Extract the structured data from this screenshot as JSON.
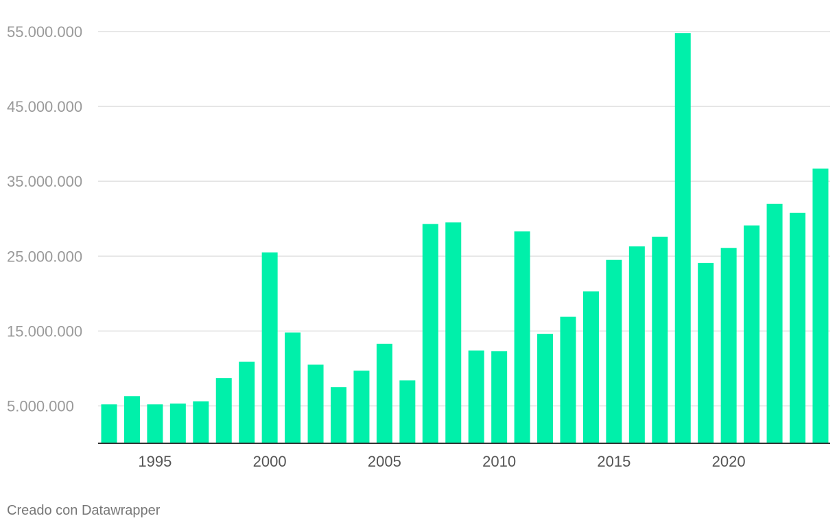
{
  "credit": "Creado con Datawrapper",
  "colors": {
    "bar": "#00f0aa",
    "grid": "#e0e0e0",
    "axis": "#333333"
  },
  "chart_data": {
    "type": "bar",
    "title": "",
    "xlabel": "",
    "ylabel": "",
    "categories": [
      1993,
      1994,
      1995,
      1996,
      1997,
      1998,
      1999,
      2000,
      2001,
      2002,
      2003,
      2004,
      2005,
      2006,
      2007,
      2008,
      2009,
      2010,
      2011,
      2012,
      2013,
      2014,
      2015,
      2016,
      2017,
      2018,
      2019,
      2020,
      2021,
      2022,
      2023,
      2024
    ],
    "values": [
      5200000,
      6300000,
      5200000,
      5300000,
      5600000,
      8700000,
      10900000,
      25500000,
      14800000,
      10500000,
      7500000,
      9700000,
      13300000,
      8400000,
      29300000,
      29500000,
      12400000,
      12300000,
      28300000,
      14600000,
      16900000,
      20300000,
      24500000,
      26300000,
      27600000,
      54800000,
      24100000,
      26100000,
      29100000,
      32000000,
      30800000,
      36700000
    ],
    "ylim": [
      0,
      55000000
    ],
    "yticks": [
      5000000,
      15000000,
      25000000,
      35000000,
      45000000,
      55000000
    ],
    "ytick_labels": [
      "5.000.000",
      "15.000.000",
      "25.000.000",
      "35.000.000",
      "45.000.000",
      "55.000.000"
    ],
    "xticks": [
      1995,
      2000,
      2005,
      2010,
      2015,
      2020
    ],
    "xtick_labels": [
      "1995",
      "2000",
      "2005",
      "2010",
      "2015",
      "2020"
    ],
    "grid": true,
    "legend": "none"
  }
}
